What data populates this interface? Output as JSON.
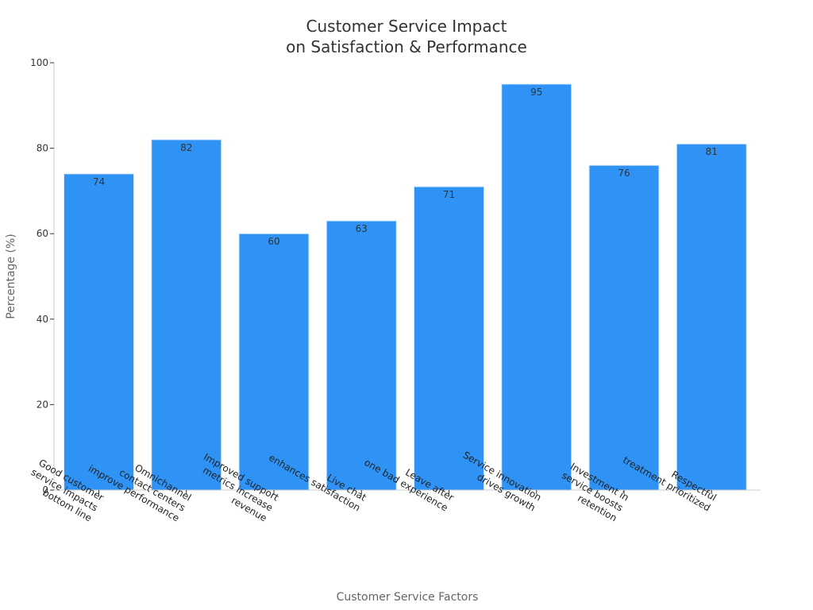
{
  "chart_data": {
    "type": "bar",
    "title": [
      "Customer Service Impact",
      "on Satisfaction & Performance"
    ],
    "xlabel": "Customer Service Factors",
    "ylabel": "Percentage (%)",
    "ylim": [
      0,
      100
    ],
    "yticks": [
      0,
      20,
      40,
      60,
      80,
      100
    ],
    "categories": [
      [
        "Good customer",
        "service impacts",
        "bottom line"
      ],
      [
        "Omnichannel",
        "contact centers",
        "improve performance"
      ],
      [
        "Improved support",
        "metrics increase",
        "revenue"
      ],
      [
        "Live chat",
        "enhances satisfaction"
      ],
      [
        "Leave after",
        "one bad experience"
      ],
      [
        "Service innovation",
        "drives growth"
      ],
      [
        "Investment in",
        "service boosts",
        "retention"
      ],
      [
        "Respectful",
        "treatment prioritized"
      ]
    ],
    "values": [
      74,
      82,
      60,
      63,
      71,
      95,
      76,
      81
    ],
    "bar_color": "#2e93f5",
    "grid": false,
    "legend": "none"
  }
}
